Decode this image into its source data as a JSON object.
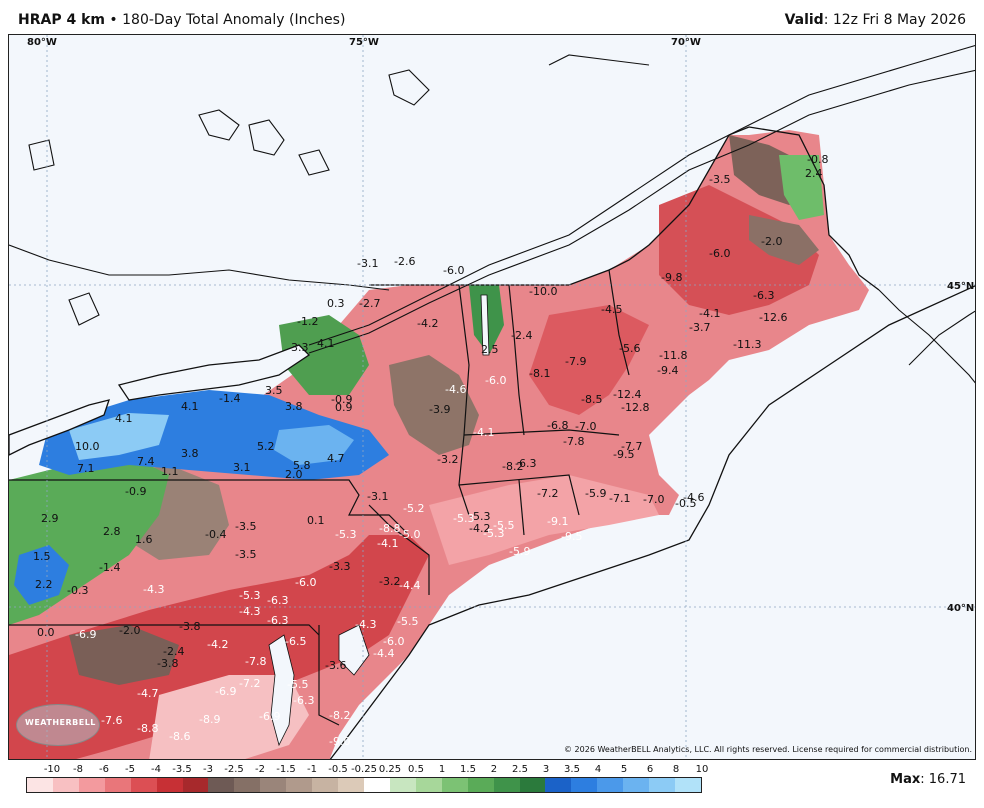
{
  "header": {
    "title_bold": "HRAP 4 km",
    "title_rest": " • 180-Day Total Anomaly (Inches)",
    "valid_label": "Valid",
    "valid_text": ": 12z Fri 8 May 2026"
  },
  "map": {
    "lon_labels": [
      "80°W",
      "75°W",
      "70°W"
    ],
    "lat_labels": [
      "45°N",
      "40°N"
    ],
    "point_values": [
      "-0.8",
      "2.4",
      "-3.5",
      "-2.0",
      "-6.0",
      "-9.8",
      "-6.3",
      "-4.5",
      "-4.1",
      "-3.7",
      "-12.6",
      "-11.3",
      "-10.0",
      "-5.6",
      "-11.8",
      "-9.4",
      "-12.4",
      "-12.8",
      "-7.9",
      "-8.5",
      "-8.1",
      "-6.8",
      "-7.0",
      "-7.8",
      "-7.7",
      "-9.5",
      "-8.2",
      "-6.3",
      "-7.2",
      "-5.9",
      "-7.1",
      "-7.0",
      "-4.6",
      "-0.5",
      "-5.3",
      "-4.2",
      "-2.6",
      "-3.1",
      "-6.0",
      "-4.2",
      "-2.7",
      "0.3",
      "4.1",
      "3.3",
      "-1.2",
      "2.5",
      "-2.4",
      "-6.0",
      "-4.6",
      "-3.9",
      "-4.1",
      "-3.2",
      "-5.2",
      "-5.3",
      "-5.5",
      "-5.3",
      "-9.1",
      "-9.5",
      "-5.9",
      "4.1",
      "-1.4",
      "4.1",
      "3.8",
      "3.5",
      "-0.9",
      "0.9",
      "10.0",
      "7.1",
      "7.4",
      "3.8",
      "1.1",
      "3.1",
      "5.2",
      "2.0",
      "5.8",
      "4.7",
      "-3.1",
      "0.1",
      "-5.3",
      "-8.8",
      "-5.0",
      "-4.1",
      "-0.9",
      "2.9",
      "2.8",
      "1.6",
      "-0.4",
      "-3.5",
      "-3.5",
      "1.5",
      "2.2",
      "-1.4",
      "-0.3",
      "-4.3",
      "-6.0",
      "-3.3",
      "-3.2",
      "-4.4",
      "-5.3",
      "-6.3",
      "-4.3",
      "-6.3",
      "-4.3",
      "-5.5",
      "-6.0",
      "0.0",
      "-6.9",
      "-2.0",
      "-3.8",
      "-2.4",
      "-4.2",
      "-3.8",
      "-6.5",
      "-7.8",
      "-3.6",
      "-4.4",
      "-7.2",
      "-4.7",
      "-6.9",
      "-5.5",
      "-6.3",
      "-7.6",
      "-8.8",
      "-8.9",
      "-6.9",
      "-8.2",
      "-8.6",
      "-9.0"
    ]
  },
  "copyright": "© 2026 WeatherBELL Analytics, LLC. All rights reserved. License required for commercial distribution.",
  "logo_text": "WEATHERBELL",
  "legend": {
    "ticks": [
      "-10",
      "-8",
      "-6",
      "-5",
      "-4",
      "-3.5",
      "-3",
      "-2.5",
      "-2",
      "-1.5",
      "-1",
      "-0.5",
      "-0.25",
      "0.25",
      "0.5",
      "1",
      "1.5",
      "2",
      "2.5",
      "3",
      "3.5",
      "4",
      "5",
      "6",
      "8",
      "10"
    ],
    "colors": [
      "#fce4e4",
      "#f8c0c2",
      "#f39a9e",
      "#e9767a",
      "#dc4f54",
      "#c73035",
      "#a7292c",
      "#6e5a55",
      "#857066",
      "#9a857a",
      "#b09a8c",
      "#c7b3a2",
      "#dccab8",
      "#ffffff",
      "#c8e6c0",
      "#a7d79a",
      "#7cc274",
      "#5aab58",
      "#3f934a",
      "#2b7a3c",
      "#1b62c8",
      "#2d7ee0",
      "#4b99ea",
      "#6bb3f0",
      "#8ccbf5",
      "#b1e2f9"
    ]
  },
  "max": {
    "label": "Max",
    "value": ": 16.71"
  }
}
